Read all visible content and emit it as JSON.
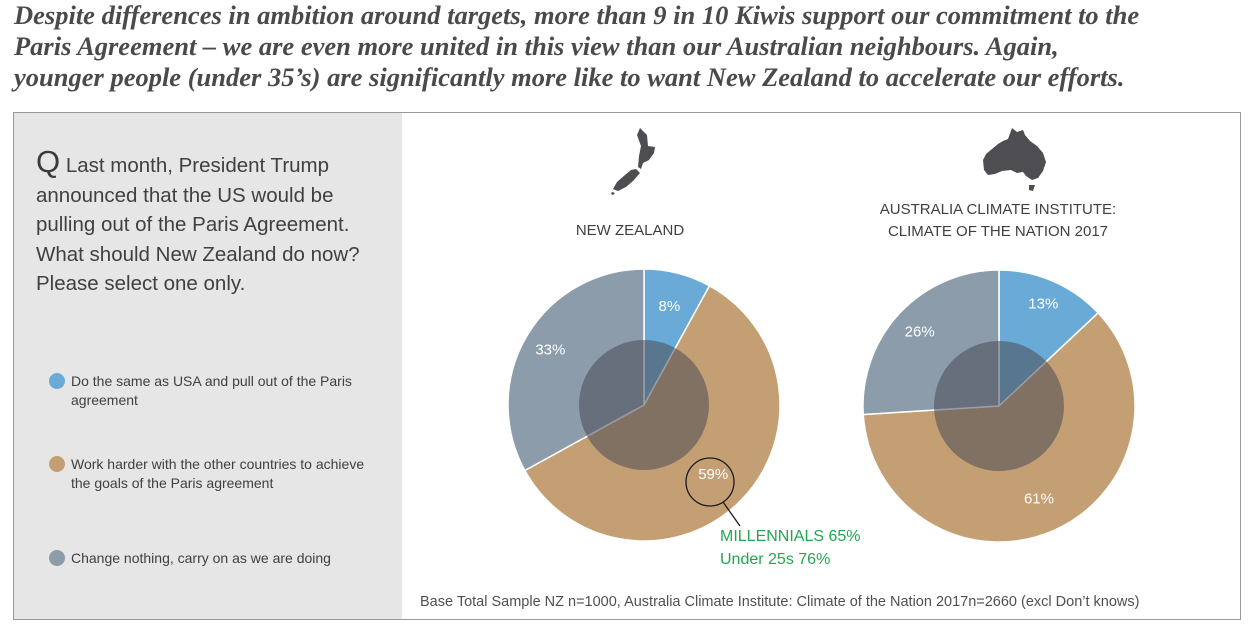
{
  "headline": {
    "line1": "Despite differences in ambition around targets, more than 9 in 10 Kiwis support our commitment to the",
    "line2": "Paris Agreement – we are even more united in this view than our Australian neighbours. Again,",
    "line3": "younger people (under 35’s) are significantly more like to want New Zealand to accelerate our efforts."
  },
  "question": {
    "marker": "Q",
    "text": " Last month, President Trump announced that the US would be pulling out of the Paris Agreement. What should New Zealand do now? Please select one only."
  },
  "legend": [
    {
      "label": "Do the same as USA and pull out of the Paris agreement",
      "color": "#6aaad6"
    },
    {
      "label": "Work harder with the other countries to achieve the goals of the Paris agreement",
      "color": "#c49f74"
    },
    {
      "label": "Change nothing, carry on as we are doing",
      "color": "#8c9cab"
    }
  ],
  "chart_data": [
    {
      "type": "pie",
      "title": "NEW ZEALAND",
      "icon": "new-zealand-map-icon",
      "slices": [
        {
          "category": "Do the same as USA and pull out of the Paris agreement",
          "value": 8,
          "label": "8%",
          "color": "#6aaad6"
        },
        {
          "category": "Work harder with the other countries to achieve the goals of the Paris agreement",
          "value": 59,
          "label": "59%",
          "color": "#c49f74"
        },
        {
          "category": "Change nothing, carry on as we are doing",
          "value": 33,
          "label": "33%",
          "color": "#8c9cab"
        }
      ],
      "callout": {
        "line1": "MILLENNIALS 65%",
        "line2": "Under 25s 76%",
        "color": "#1fa84f"
      }
    },
    {
      "type": "pie",
      "title_line1": "AUSTRALIA CLIMATE INSTITUTE:",
      "title_line2": "CLIMATE OF THE NATION 2017",
      "icon": "australia-map-icon",
      "slices": [
        {
          "category": "Do the same as USA and pull out of the Paris agreement",
          "value": 13,
          "label": "13%",
          "color": "#6aaad6"
        },
        {
          "category": "Work harder with the other countries to achieve the goals of the Paris agreement",
          "value": 61,
          "label": "61%",
          "color": "#c49f74"
        },
        {
          "category": "Change nothing, carry on as we are doing",
          "value": 26,
          "label": "26%",
          "color": "#8c9cab"
        }
      ]
    }
  ],
  "base_note": "Base Total Sample NZ n=1000, Australia Climate Institute: Climate of the Nation 2017n=2660 (excl Don’t knows)"
}
